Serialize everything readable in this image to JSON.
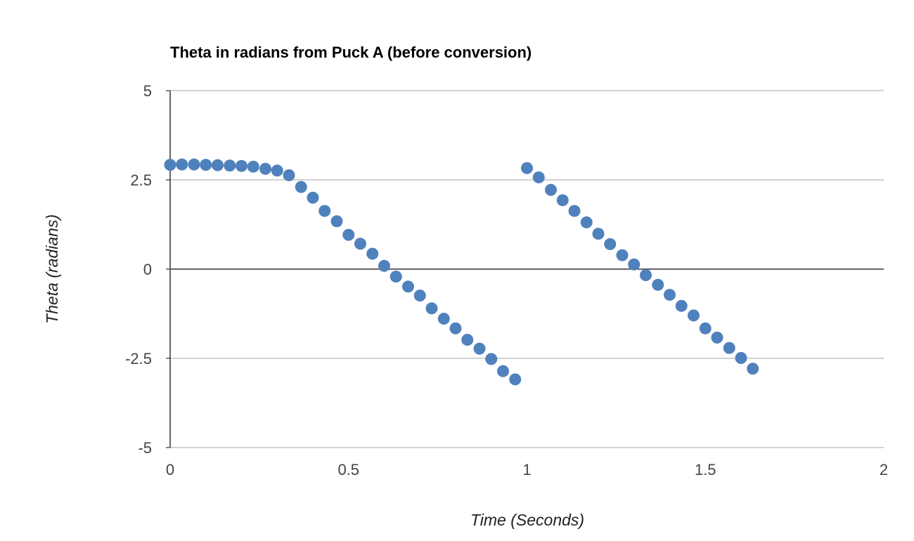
{
  "chart_data": {
    "type": "scatter",
    "title": "Theta in radians from Puck A (before conversion)",
    "xlabel": "Time (Seconds)",
    "ylabel": "Theta (radians)",
    "xlim": [
      0,
      2
    ],
    "ylim": [
      -5,
      5
    ],
    "x_ticks": [
      "0",
      "0.5",
      "1",
      "1.5",
      "2"
    ],
    "y_ticks": [
      "5",
      "2.5",
      "0",
      "-2.5",
      "-5"
    ],
    "grid": true,
    "legend": "none",
    "color": "#4f81bd",
    "series": [
      {
        "points": [
          [
            0.0,
            2.92
          ],
          [
            0.033,
            2.93
          ],
          [
            0.067,
            2.93
          ],
          [
            0.1,
            2.92
          ],
          [
            0.133,
            2.91
          ],
          [
            0.167,
            2.9
          ],
          [
            0.2,
            2.89
          ],
          [
            0.233,
            2.87
          ],
          [
            0.267,
            2.81
          ],
          [
            0.3,
            2.76
          ],
          [
            0.333,
            2.63
          ],
          [
            0.367,
            2.3
          ],
          [
            0.4,
            2.0
          ],
          [
            0.433,
            1.63
          ],
          [
            0.467,
            1.34
          ],
          [
            0.5,
            0.96
          ],
          [
            0.533,
            0.71
          ],
          [
            0.567,
            0.43
          ],
          [
            0.6,
            0.09
          ],
          [
            0.633,
            -0.21
          ],
          [
            0.667,
            -0.49
          ],
          [
            0.7,
            -0.74
          ],
          [
            0.733,
            -1.1
          ],
          [
            0.767,
            -1.39
          ],
          [
            0.8,
            -1.66
          ],
          [
            0.833,
            -1.98
          ],
          [
            0.867,
            -2.23
          ],
          [
            0.9,
            -2.52
          ],
          [
            0.933,
            -2.86
          ],
          [
            0.967,
            -3.09
          ],
          [
            1.0,
            2.83
          ],
          [
            1.033,
            2.57
          ],
          [
            1.067,
            2.22
          ],
          [
            1.1,
            1.93
          ],
          [
            1.133,
            1.63
          ],
          [
            1.167,
            1.31
          ],
          [
            1.2,
            0.99
          ],
          [
            1.233,
            0.7
          ],
          [
            1.267,
            0.39
          ],
          [
            1.3,
            0.13
          ],
          [
            1.333,
            -0.17
          ],
          [
            1.367,
            -0.44
          ],
          [
            1.4,
            -0.72
          ],
          [
            1.433,
            -1.03
          ],
          [
            1.467,
            -1.3
          ],
          [
            1.5,
            -1.66
          ],
          [
            1.533,
            -1.92
          ],
          [
            1.567,
            -2.21
          ],
          [
            1.6,
            -2.49
          ],
          [
            1.633,
            -2.79
          ]
        ]
      }
    ]
  }
}
